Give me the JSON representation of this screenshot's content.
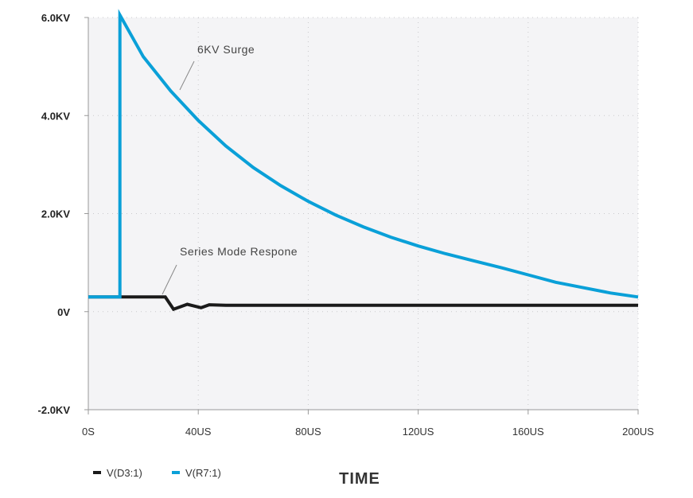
{
  "chart_data": {
    "type": "line",
    "title": "",
    "xlabel": "TIME",
    "ylabel": "",
    "xlim": [
      0,
      200
    ],
    "ylim": [
      -2,
      6
    ],
    "grid": true,
    "legend_position": "bottom-left",
    "y_ticks": [
      {
        "value": 6,
        "label": "6.0KV"
      },
      {
        "value": 4,
        "label": "4.0KV"
      },
      {
        "value": 2,
        "label": "2.0KV"
      },
      {
        "value": 0,
        "label": "0V"
      },
      {
        "value": -2,
        "label": "-2.0KV"
      }
    ],
    "x_ticks": [
      {
        "value": 0,
        "label": "0S"
      },
      {
        "value": 40,
        "label": "40US"
      },
      {
        "value": 80,
        "label": "80US"
      },
      {
        "value": 120,
        "label": "120US"
      },
      {
        "value": 160,
        "label": "160US"
      },
      {
        "value": 200,
        "label": "200US"
      }
    ],
    "series": [
      {
        "name": "V(D3:1)",
        "color": "#1a1a1a",
        "points": [
          [
            0,
            0.3
          ],
          [
            12,
            0.3
          ],
          [
            28,
            0.3
          ],
          [
            31,
            0.05
          ],
          [
            36,
            0.15
          ],
          [
            41,
            0.08
          ],
          [
            44,
            0.14
          ],
          [
            50,
            0.13
          ],
          [
            100,
            0.13
          ],
          [
            150,
            0.13
          ],
          [
            200,
            0.13
          ]
        ]
      },
      {
        "name": "V(R7:1)",
        "color": "#0aa0d8",
        "points": [
          [
            0,
            0.3
          ],
          [
            11.5,
            0.3
          ],
          [
            11.5,
            6.05
          ],
          [
            20,
            5.2
          ],
          [
            30,
            4.5
          ],
          [
            40,
            3.9
          ],
          [
            50,
            3.38
          ],
          [
            60,
            2.94
          ],
          [
            70,
            2.57
          ],
          [
            80,
            2.25
          ],
          [
            90,
            1.97
          ],
          [
            100,
            1.73
          ],
          [
            110,
            1.52
          ],
          [
            120,
            1.34
          ],
          [
            130,
            1.18
          ],
          [
            140,
            1.04
          ],
          [
            150,
            0.9
          ],
          [
            160,
            0.75
          ],
          [
            170,
            0.6
          ],
          [
            180,
            0.49
          ],
          [
            190,
            0.38
          ],
          [
            200,
            0.3
          ]
        ]
      }
    ],
    "annotations": [
      {
        "text": "6KV Surge",
        "anchor": [
          33,
          4.5
        ],
        "target_series": "V(R7:1)"
      },
      {
        "text": "Series Mode Respone",
        "anchor": [
          27,
          0.45
        ],
        "target_series": "V(D3:1)"
      }
    ]
  }
}
